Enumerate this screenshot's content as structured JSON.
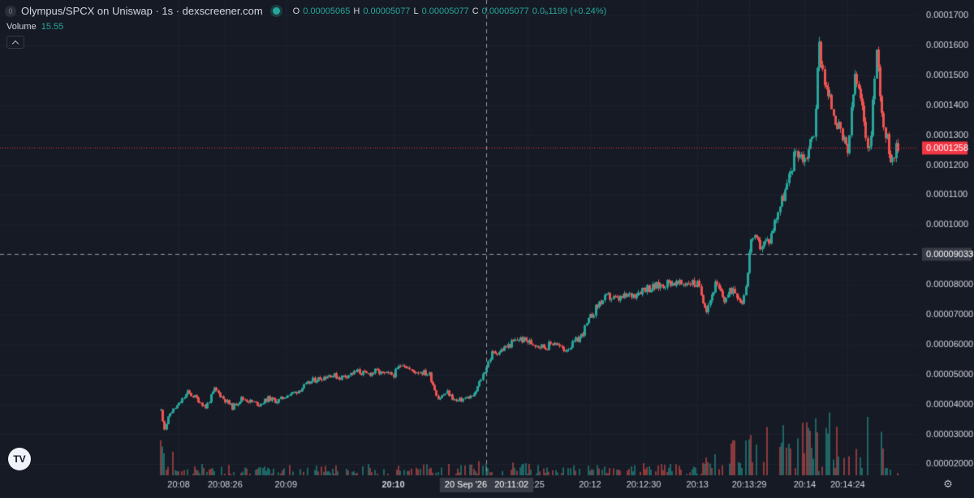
{
  "header": {
    "title": "Olympus/SPCX on Uniswap · 1s · dexscreener.com",
    "coin_icon": "0",
    "ohlc": {
      "o_label": "O",
      "o": "0.00005065",
      "h_label": "H",
      "h": "0.00005077",
      "l_label": "L",
      "l": "0.00005077",
      "c_label": "C",
      "c": "0.00005077",
      "change": "0.0₆1199 (+0.24%)"
    }
  },
  "volume": {
    "label": "Volume",
    "value": "15.55"
  },
  "logo_text": "TV",
  "icons": {
    "gear": "gear-icon",
    "chevron": "chevron-up-icon",
    "status": "status-dot-icon"
  },
  "colors": {
    "up": "#26a69a",
    "down": "#ef5350",
    "background": "#161a25",
    "last_price": "#f23645"
  },
  "chart_data": {
    "type": "candlestick",
    "y_ticks": [
      "0.0001700",
      "0.0001600",
      "0.0001500",
      "0.0001400",
      "0.0001300",
      "0.0001200",
      "0.0001100",
      "0.0001000",
      "0.00009000",
      "0.00008000",
      "0.00007000",
      "0.00006000",
      "0.00005000",
      "0.00004000",
      "0.00003000",
      "0.00002000"
    ],
    "ylim": [
      1.63e-05,
      0.0001752
    ],
    "x_ticks": [
      {
        "label": "20:08",
        "t": 10
      },
      {
        "label": "20:08:26",
        "t": 36
      },
      {
        "label": "20:09",
        "t": 70
      },
      {
        "label": "20:10",
        "t": 130,
        "bold": true
      },
      {
        "label": "20:11:25",
        "t": 205
      },
      {
        "label": "20:12",
        "t": 240
      },
      {
        "label": "20:12:30",
        "t": 270
      },
      {
        "label": "20:13",
        "t": 300
      },
      {
        "label": "20:13:29",
        "t": 329
      },
      {
        "label": "20:14",
        "t": 360
      },
      {
        "label": "20:14:24",
        "t": 384
      }
    ],
    "last_price": "0.0001258",
    "last_price_value": 0.0001258,
    "crosshair": {
      "price": "0.00009033",
      "price_value": 9.033e-05,
      "time": "20 Sep '26   20:11:02",
      "t": 182
    },
    "close_points": [
      [
        0,
        3.8e-05
      ],
      [
        2,
        3.2e-05
      ],
      [
        5,
        3.7e-05
      ],
      [
        10,
        4e-05
      ],
      [
        15,
        4.4e-05
      ],
      [
        20,
        4.2e-05
      ],
      [
        25,
        3.9e-05
      ],
      [
        30,
        4.5e-05
      ],
      [
        35,
        4.2e-05
      ],
      [
        40,
        3.9e-05
      ],
      [
        45,
        4.2e-05
      ],
      [
        50,
        4.1e-05
      ],
      [
        55,
        4e-05
      ],
      [
        60,
        4.2e-05
      ],
      [
        65,
        4.1e-05
      ],
      [
        70,
        4.3e-05
      ],
      [
        75,
        4.4e-05
      ],
      [
        80,
        4.6e-05
      ],
      [
        85,
        4.8e-05
      ],
      [
        90,
        4.9e-05
      ],
      [
        95,
        5e-05
      ],
      [
        100,
        4.9e-05
      ],
      [
        105,
        5e-05
      ],
      [
        110,
        5.1e-05
      ],
      [
        115,
        5e-05
      ],
      [
        120,
        5.1e-05
      ],
      [
        125,
        5e-05
      ],
      [
        130,
        5e-05
      ],
      [
        135,
        5.4e-05
      ],
      [
        140,
        5.1e-05
      ],
      [
        145,
        5.1e-05
      ],
      [
        150,
        5e-05
      ],
      [
        155,
        4.2e-05
      ],
      [
        160,
        4.4e-05
      ],
      [
        165,
        4.1e-05
      ],
      [
        170,
        4.2e-05
      ],
      [
        175,
        4.3e-05
      ],
      [
        180,
        5e-05
      ],
      [
        185,
        5.7e-05
      ],
      [
        190,
        5.8e-05
      ],
      [
        195,
        6e-05
      ],
      [
        200,
        6.2e-05
      ],
      [
        205,
        6.1e-05
      ],
      [
        210,
        6e-05
      ],
      [
        215,
        5.9e-05
      ],
      [
        220,
        6.1e-05
      ],
      [
        225,
        5.8e-05
      ],
      [
        230,
        6e-05
      ],
      [
        235,
        6.3e-05
      ],
      [
        240,
        6.9e-05
      ],
      [
        245,
        7.4e-05
      ],
      [
        250,
        7.6e-05
      ],
      [
        255,
        7.5e-05
      ],
      [
        260,
        7.6e-05
      ],
      [
        265,
        7.7e-05
      ],
      [
        270,
        7.9e-05
      ],
      [
        275,
        7.9e-05
      ],
      [
        280,
        8e-05
      ],
      [
        285,
        8.1e-05
      ],
      [
        290,
        8e-05
      ],
      [
        295,
        8.1e-05
      ],
      [
        300,
        8e-05
      ],
      [
        305,
        7.2e-05
      ],
      [
        310,
        8e-05
      ],
      [
        315,
        7.5e-05
      ],
      [
        320,
        7.9e-05
      ],
      [
        325,
        7.4e-05
      ],
      [
        328,
        8.4e-05
      ],
      [
        330,
        9.6e-05
      ],
      [
        335,
        9.3e-05
      ],
      [
        340,
        9.5e-05
      ],
      [
        345,
        0.000105
      ],
      [
        350,
        0.000113
      ],
      [
        355,
        0.000125
      ],
      [
        360,
        0.000122
      ],
      [
        365,
        0.000131
      ],
      [
        368,
        0.00016
      ],
      [
        372,
        0.000145
      ],
      [
        376,
        0.000138
      ],
      [
        380,
        0.00013
      ],
      [
        384,
        0.000124
      ],
      [
        388,
        0.00015
      ],
      [
        392,
        0.000138
      ],
      [
        396,
        0.000124
      ],
      [
        400,
        0.000158
      ],
      [
        404,
        0.000133
      ],
      [
        408,
        0.000123
      ],
      [
        412,
        0.0001258
      ]
    ],
    "volume_levels": [
      [
        0,
        0.8
      ],
      [
        10,
        0.1
      ],
      [
        60,
        0.12
      ],
      [
        130,
        0.1
      ],
      [
        180,
        0.15
      ],
      [
        240,
        0.12
      ],
      [
        300,
        0.12
      ],
      [
        330,
        0.6
      ],
      [
        360,
        0.7
      ],
      [
        372,
        0.9
      ],
      [
        384,
        0.5
      ],
      [
        396,
        0.8
      ],
      [
        412,
        0.2
      ]
    ]
  }
}
